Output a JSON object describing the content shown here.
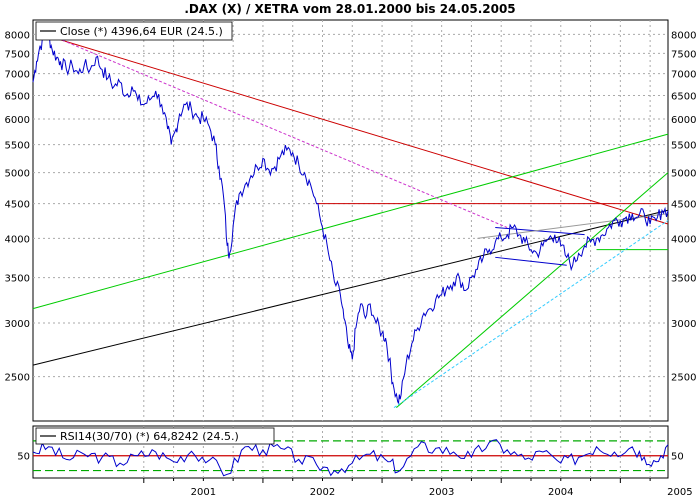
{
  "chart_data": [
    {
      "type": "line",
      "title": ".DAX (X) / XETRA vom 28.01.2000 bis 24.05.2005",
      "legend": "Close (*) 4396,64 EUR (24.5.)",
      "legend_position": "top-left",
      "y_scale": "log",
      "ylim": [
        2150,
        8400
      ],
      "y_ticks": [
        2500,
        3000,
        3500,
        4000,
        4500,
        5000,
        5500,
        6000,
        6500,
        7000,
        7500,
        8000
      ],
      "x_ticks": [
        "2001",
        "2002",
        "2003",
        "2004",
        "2005"
      ],
      "xlim": [
        2000.07,
        2005.4
      ],
      "grid": true,
      "series": [
        {
          "color": "#0000cc",
          "points": [
            [
              2000.07,
              6800
            ],
            [
              2000.1,
              7300
            ],
            [
              2000.13,
              7700
            ],
            [
              2000.17,
              7900
            ],
            [
              2000.2,
              8000
            ],
            [
              2000.23,
              7600
            ],
            [
              2000.27,
              7400
            ],
            [
              2000.3,
              7300
            ],
            [
              2000.35,
              7100
            ],
            [
              2000.4,
              7200
            ],
            [
              2000.45,
              7000
            ],
            [
              2000.5,
              7200
            ],
            [
              2000.55,
              7100
            ],
            [
              2000.6,
              7400
            ],
            [
              2000.65,
              7100
            ],
            [
              2000.7,
              6900
            ],
            [
              2000.75,
              6700
            ],
            [
              2000.8,
              6800
            ],
            [
              2000.85,
              6500
            ],
            [
              2000.9,
              6700
            ],
            [
              2000.95,
              6400
            ],
            [
              2001.0,
              6300
            ],
            [
              2001.05,
              6400
            ],
            [
              2001.1,
              6600
            ],
            [
              2001.15,
              6300
            ],
            [
              2001.2,
              5800
            ],
            [
              2001.23,
              5500
            ],
            [
              2001.27,
              5800
            ],
            [
              2001.3,
              6100
            ],
            [
              2001.35,
              6300
            ],
            [
              2001.4,
              6200
            ],
            [
              2001.45,
              6050
            ],
            [
              2001.5,
              6000
            ],
            [
              2001.55,
              5850
            ],
            [
              2001.6,
              5500
            ],
            [
              2001.63,
              5100
            ],
            [
              2001.67,
              4600
            ],
            [
              2001.7,
              3900
            ],
            [
              2001.72,
              3800
            ],
            [
              2001.76,
              4300
            ],
            [
              2001.8,
              4650
            ],
            [
              2001.85,
              4800
            ],
            [
              2001.9,
              4950
            ],
            [
              2001.95,
              5100
            ],
            [
              2002.0,
              5250
            ],
            [
              2002.05,
              5050
            ],
            [
              2002.1,
              5100
            ],
            [
              2002.15,
              5300
            ],
            [
              2002.2,
              5400
            ],
            [
              2002.25,
              5350
            ],
            [
              2002.3,
              5150
            ],
            [
              2002.35,
              5000
            ],
            [
              2002.4,
              4800
            ],
            [
              2002.45,
              4500
            ],
            [
              2002.5,
              4150
            ],
            [
              2002.55,
              3800
            ],
            [
              2002.6,
              3450
            ],
            [
              2002.65,
              3300
            ],
            [
              2002.68,
              3050
            ],
            [
              2002.72,
              2750
            ],
            [
              2002.75,
              2650
            ],
            [
              2002.78,
              2950
            ],
            [
              2002.82,
              3200
            ],
            [
              2002.86,
              3050
            ],
            [
              2002.9,
              3200
            ],
            [
              2002.95,
              3000
            ],
            [
              2003.0,
              2900
            ],
            [
              2003.03,
              2850
            ],
            [
              2003.06,
              2650
            ],
            [
              2003.09,
              2450
            ],
            [
              2003.13,
              2300
            ],
            [
              2003.16,
              2350
            ],
            [
              2003.2,
              2600
            ],
            [
              2003.25,
              2800
            ],
            [
              2003.3,
              2950
            ],
            [
              2003.35,
              3100
            ],
            [
              2003.4,
              3150
            ],
            [
              2003.45,
              3250
            ],
            [
              2003.5,
              3300
            ],
            [
              2003.55,
              3400
            ],
            [
              2003.6,
              3450
            ],
            [
              2003.65,
              3500
            ],
            [
              2003.7,
              3350
            ],
            [
              2003.75,
              3500
            ],
            [
              2003.8,
              3600
            ],
            [
              2003.85,
              3750
            ],
            [
              2003.9,
              3850
            ],
            [
              2003.95,
              3950
            ],
            [
              2004.0,
              4000
            ],
            [
              2004.05,
              4050
            ],
            [
              2004.1,
              4150
            ],
            [
              2004.15,
              4050
            ],
            [
              2004.2,
              3950
            ],
            [
              2004.25,
              3850
            ],
            [
              2004.3,
              3800
            ],
            [
              2004.35,
              3900
            ],
            [
              2004.4,
              4000
            ],
            [
              2004.45,
              4050
            ],
            [
              2004.5,
              3900
            ],
            [
              2004.55,
              3750
            ],
            [
              2004.6,
              3650
            ],
            [
              2004.65,
              3800
            ],
            [
              2004.7,
              3900
            ],
            [
              2004.75,
              3950
            ],
            [
              2004.8,
              4000
            ],
            [
              2004.85,
              4050
            ],
            [
              2004.9,
              4150
            ],
            [
              2004.95,
              4250
            ],
            [
              2005.0,
              4250
            ],
            [
              2005.05,
              4300
            ],
            [
              2005.1,
              4350
            ],
            [
              2005.15,
              4300
            ],
            [
              2005.2,
              4350
            ],
            [
              2005.25,
              4200
            ],
            [
              2005.3,
              4250
            ],
            [
              2005.35,
              4400
            ],
            [
              2005.4,
              4396.64
            ]
          ]
        }
      ],
      "lines": [
        {
          "color": "#cc0000",
          "from": [
            2000.15,
            8000
          ],
          "to": [
            2005.4,
            4200
          ]
        },
        {
          "color": "#cc0000",
          "from": [
            2002.45,
            4500
          ],
          "to": [
            2005.4,
            4500
          ]
        },
        {
          "color": "#000000",
          "from": [
            2000.07,
            2600
          ],
          "to": [
            2005.4,
            4400
          ]
        },
        {
          "color": "#00cc00",
          "from": [
            2000.07,
            3150
          ],
          "to": [
            2005.4,
            5700
          ]
        },
        {
          "color": "#00cc00",
          "from": [
            2003.12,
            2250
          ],
          "to": [
            2005.4,
            5000
          ]
        },
        {
          "color": "#00cc00",
          "from": [
            2004.8,
            3850
          ],
          "to": [
            2005.4,
            3850
          ]
        },
        {
          "color": "#cc33cc",
          "from": [
            2000.2,
            8000
          ],
          "to": [
            2004.05,
            4150
          ]
        },
        {
          "color": "#33ccff",
          "from": [
            2003.1,
            2250
          ],
          "to": [
            2005.4,
            4250
          ]
        },
        {
          "color": "#0000cc",
          "from": [
            2003.95,
            4150
          ],
          "to": [
            2004.7,
            4050
          ]
        },
        {
          "color": "#0000cc",
          "from": [
            2003.95,
            3750
          ],
          "to": [
            2004.55,
            3650
          ]
        },
        {
          "color": "#999999",
          "from": [
            2003.8,
            4000
          ],
          "to": [
            2005.4,
            4350
          ]
        }
      ]
    },
    {
      "type": "line",
      "legend": "RSI14(30/70) (*) 64,8242 (24.5.)",
      "legend_position": "top-left",
      "ylim": [
        20,
        90
      ],
      "y_ticks": [
        50
      ],
      "x_ticks": [
        "2001",
        "2002",
        "2003",
        "2004",
        "2005"
      ],
      "xlim": [
        2000.07,
        2005.4
      ],
      "levels": [
        {
          "value": 70,
          "color": "#00aa00",
          "style": "dashed"
        },
        {
          "value": 50,
          "color": "#cc0000",
          "style": "solid"
        },
        {
          "value": 30,
          "color": "#00aa00",
          "style": "dashed"
        }
      ],
      "series": [
        {
          "color": "#0000cc",
          "points": [
            [
              2000.07,
              55
            ],
            [
              2000.2,
              62
            ],
            [
              2000.35,
              45
            ],
            [
              2000.5,
              52
            ],
            [
              2000.65,
              48
            ],
            [
              2000.8,
              40
            ],
            [
              2000.95,
              50
            ],
            [
              2001.1,
              55
            ],
            [
              2001.25,
              42
            ],
            [
              2001.4,
              56
            ],
            [
              2001.55,
              44
            ],
            [
              2001.7,
              25
            ],
            [
              2001.85,
              62
            ],
            [
              2002.0,
              58
            ],
            [
              2002.15,
              60
            ],
            [
              2002.3,
              45
            ],
            [
              2002.45,
              38
            ],
            [
              2002.6,
              30
            ],
            [
              2002.75,
              40
            ],
            [
              2002.9,
              52
            ],
            [
              2003.05,
              42
            ],
            [
              2003.15,
              30
            ],
            [
              2003.3,
              62
            ],
            [
              2003.45,
              60
            ],
            [
              2003.6,
              55
            ],
            [
              2003.75,
              48
            ],
            [
              2003.9,
              68
            ],
            [
              2004.05,
              58
            ],
            [
              2004.2,
              45
            ],
            [
              2004.35,
              55
            ],
            [
              2004.5,
              40
            ],
            [
              2004.65,
              48
            ],
            [
              2004.8,
              62
            ],
            [
              2004.95,
              55
            ],
            [
              2005.1,
              62
            ],
            [
              2005.2,
              48
            ],
            [
              2005.3,
              42
            ],
            [
              2005.4,
              64.8242
            ]
          ]
        }
      ]
    }
  ]
}
